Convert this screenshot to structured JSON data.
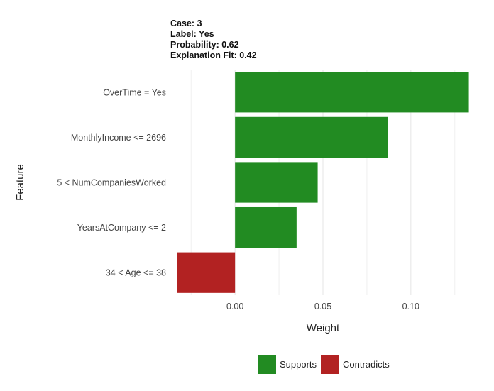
{
  "header": {
    "case": "Case: 3",
    "label": "Label: Yes",
    "probability": "Probability: 0.62",
    "fit": "Explanation Fit: 0.42"
  },
  "chart_data": {
    "type": "bar",
    "orientation": "horizontal",
    "categories": [
      "OverTime = Yes",
      "MonthlyIncome <= 2696",
      "5 < NumCompaniesWorked",
      "YearsAtCompany <= 2",
      "34 < Age <= 38"
    ],
    "values": [
      0.133,
      0.087,
      0.047,
      0.035,
      -0.033
    ],
    "groups": [
      "Supports",
      "Supports",
      "Supports",
      "Supports",
      "Contradicts"
    ],
    "xlabel": "Weight",
    "ylabel": "Feature",
    "xticks": [
      0.0,
      0.05,
      0.1
    ],
    "xtick_labels": [
      "0.00",
      "0.05",
      "0.10"
    ],
    "xlim": [
      -0.036,
      0.136
    ],
    "grid": true,
    "legend_position": "bottom",
    "legend": [
      {
        "name": "Supports",
        "color": "#228b22"
      },
      {
        "name": "Contradicts",
        "color": "#b22222"
      }
    ]
  }
}
